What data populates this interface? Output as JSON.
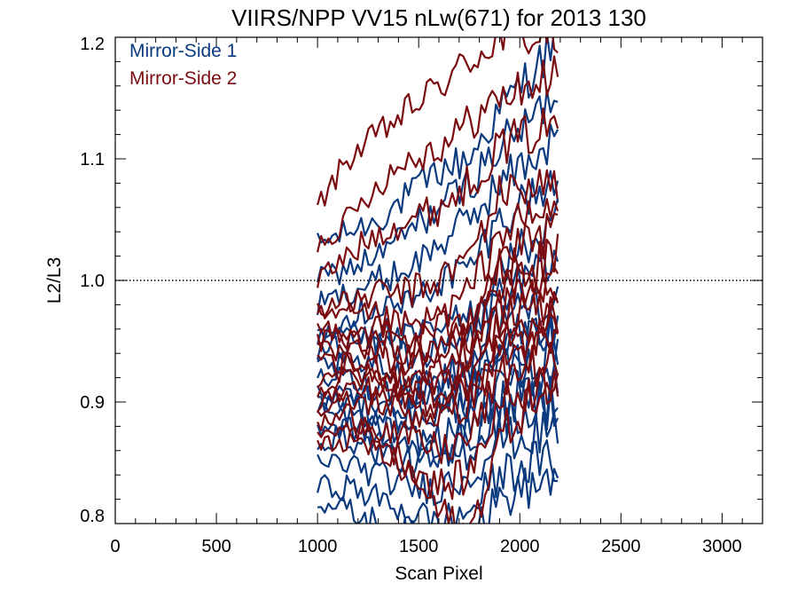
{
  "chart_data": {
    "type": "line",
    "title": "VIIRS/NPP VV15 nLw(671) for 2013 130",
    "xlabel": "Scan Pixel",
    "ylabel": "L2/L3",
    "xlim": [
      0,
      3200
    ],
    "ylim": [
      0.8,
      1.2
    ],
    "x_ticks": [
      0,
      500,
      1000,
      1500,
      2000,
      2500,
      3000
    ],
    "y_ticks": [
      "0.8",
      "0.9",
      "1.0",
      "1.1",
      "1.2"
    ],
    "y_tick_values": [
      0.8,
      0.9,
      1.0,
      1.1,
      1.2
    ],
    "reference_line": {
      "y": 1.0,
      "style": "dotted"
    },
    "grid": false,
    "legend_position": "top-left",
    "x_range_of_data": [
      1000,
      2200
    ],
    "x": [
      1000,
      1150,
      1300,
      1450,
      1600,
      1750,
      1900,
      2050,
      2200
    ],
    "series": [
      {
        "name": "Mirror-Side 1",
        "color": "#0b3a7e",
        "lines": [
          [
            1.03,
            1.04,
            1.05,
            1.07,
            1.09,
            1.1,
            1.14,
            1.17,
            1.2
          ],
          [
            1.0,
            1.01,
            1.02,
            1.04,
            1.06,
            1.08,
            1.11,
            1.13,
            1.16
          ],
          [
            0.98,
            0.99,
            1.0,
            1.01,
            1.03,
            1.05,
            1.08,
            1.1,
            1.12
          ],
          [
            0.96,
            0.97,
            0.98,
            0.98,
            1.0,
            1.01,
            1.05,
            1.07,
            1.08
          ],
          [
            0.95,
            0.96,
            0.96,
            0.95,
            0.96,
            0.97,
            1.01,
            1.03,
            1.05
          ],
          [
            0.94,
            0.95,
            0.95,
            0.94,
            0.94,
            0.95,
            0.99,
            1.0,
            1.02
          ],
          [
            0.93,
            0.93,
            0.93,
            0.92,
            0.92,
            0.93,
            0.97,
            0.98,
            0.99
          ],
          [
            0.92,
            0.92,
            0.91,
            0.91,
            0.91,
            0.92,
            0.95,
            0.96,
            0.97
          ],
          [
            0.91,
            0.91,
            0.9,
            0.9,
            0.9,
            0.91,
            0.94,
            0.95,
            0.95
          ],
          [
            0.9,
            0.9,
            0.89,
            0.89,
            0.89,
            0.9,
            0.93,
            0.93,
            0.94
          ],
          [
            0.89,
            0.89,
            0.88,
            0.87,
            0.87,
            0.88,
            0.91,
            0.92,
            0.92
          ],
          [
            0.88,
            0.88,
            0.87,
            0.86,
            0.86,
            0.87,
            0.9,
            0.9,
            0.91
          ],
          [
            0.87,
            0.87,
            0.86,
            0.85,
            0.85,
            0.86,
            0.89,
            0.89,
            0.9
          ],
          [
            0.85,
            0.85,
            0.84,
            0.83,
            0.83,
            0.84,
            0.87,
            0.87,
            0.88
          ],
          [
            0.83,
            0.83,
            0.82,
            0.81,
            0.8,
            0.81,
            0.84,
            0.85,
            0.85
          ],
          [
            0.82,
            0.81,
            0.8,
            0.79,
            0.78,
            0.79,
            0.82,
            0.83,
            0.84
          ]
        ]
      },
      {
        "name": "Mirror-Side 2",
        "color": "#7a0c10",
        "lines": [
          [
            1.06,
            1.1,
            1.12,
            1.14,
            1.16,
            1.18,
            1.2,
            1.2,
            1.2
          ],
          [
            1.03,
            1.05,
            1.08,
            1.1,
            1.11,
            1.13,
            1.15,
            1.16,
            1.17
          ],
          [
            1.0,
            1.02,
            1.04,
            1.05,
            1.06,
            1.08,
            1.11,
            1.12,
            1.13
          ],
          [
            0.98,
            0.98,
            0.99,
            0.99,
            1.0,
            1.02,
            1.07,
            1.08,
            1.08
          ],
          [
            0.97,
            0.97,
            0.97,
            0.96,
            0.97,
            0.99,
            1.04,
            1.05,
            1.06
          ],
          [
            0.96,
            0.96,
            0.96,
            0.95,
            0.96,
            0.97,
            1.02,
            1.03,
            1.04
          ],
          [
            0.95,
            0.95,
            0.95,
            0.94,
            0.95,
            0.96,
            1.01,
            1.01,
            1.02
          ],
          [
            0.94,
            0.94,
            0.94,
            0.93,
            0.94,
            0.95,
            0.99,
            1.0,
            1.0
          ],
          [
            0.93,
            0.93,
            0.93,
            0.92,
            0.93,
            0.94,
            0.98,
            0.99,
            0.99
          ],
          [
            0.92,
            0.93,
            0.92,
            0.91,
            0.92,
            0.93,
            0.97,
            0.98,
            0.98
          ],
          [
            0.91,
            0.92,
            0.92,
            0.91,
            0.91,
            0.92,
            0.96,
            0.96,
            0.97
          ],
          [
            0.9,
            0.91,
            0.91,
            0.9,
            0.9,
            0.91,
            0.95,
            0.95,
            0.96
          ],
          [
            0.89,
            0.9,
            0.9,
            0.89,
            0.89,
            0.9,
            0.94,
            0.94,
            0.95
          ],
          [
            0.88,
            0.89,
            0.88,
            0.87,
            0.86,
            0.87,
            0.92,
            0.93,
            0.93
          ],
          [
            0.87,
            0.88,
            0.87,
            0.85,
            0.83,
            0.84,
            0.9,
            0.91,
            0.92
          ],
          [
            0.86,
            0.87,
            0.86,
            0.84,
            0.81,
            0.79,
            0.87,
            0.9,
            0.91
          ]
        ]
      }
    ]
  }
}
